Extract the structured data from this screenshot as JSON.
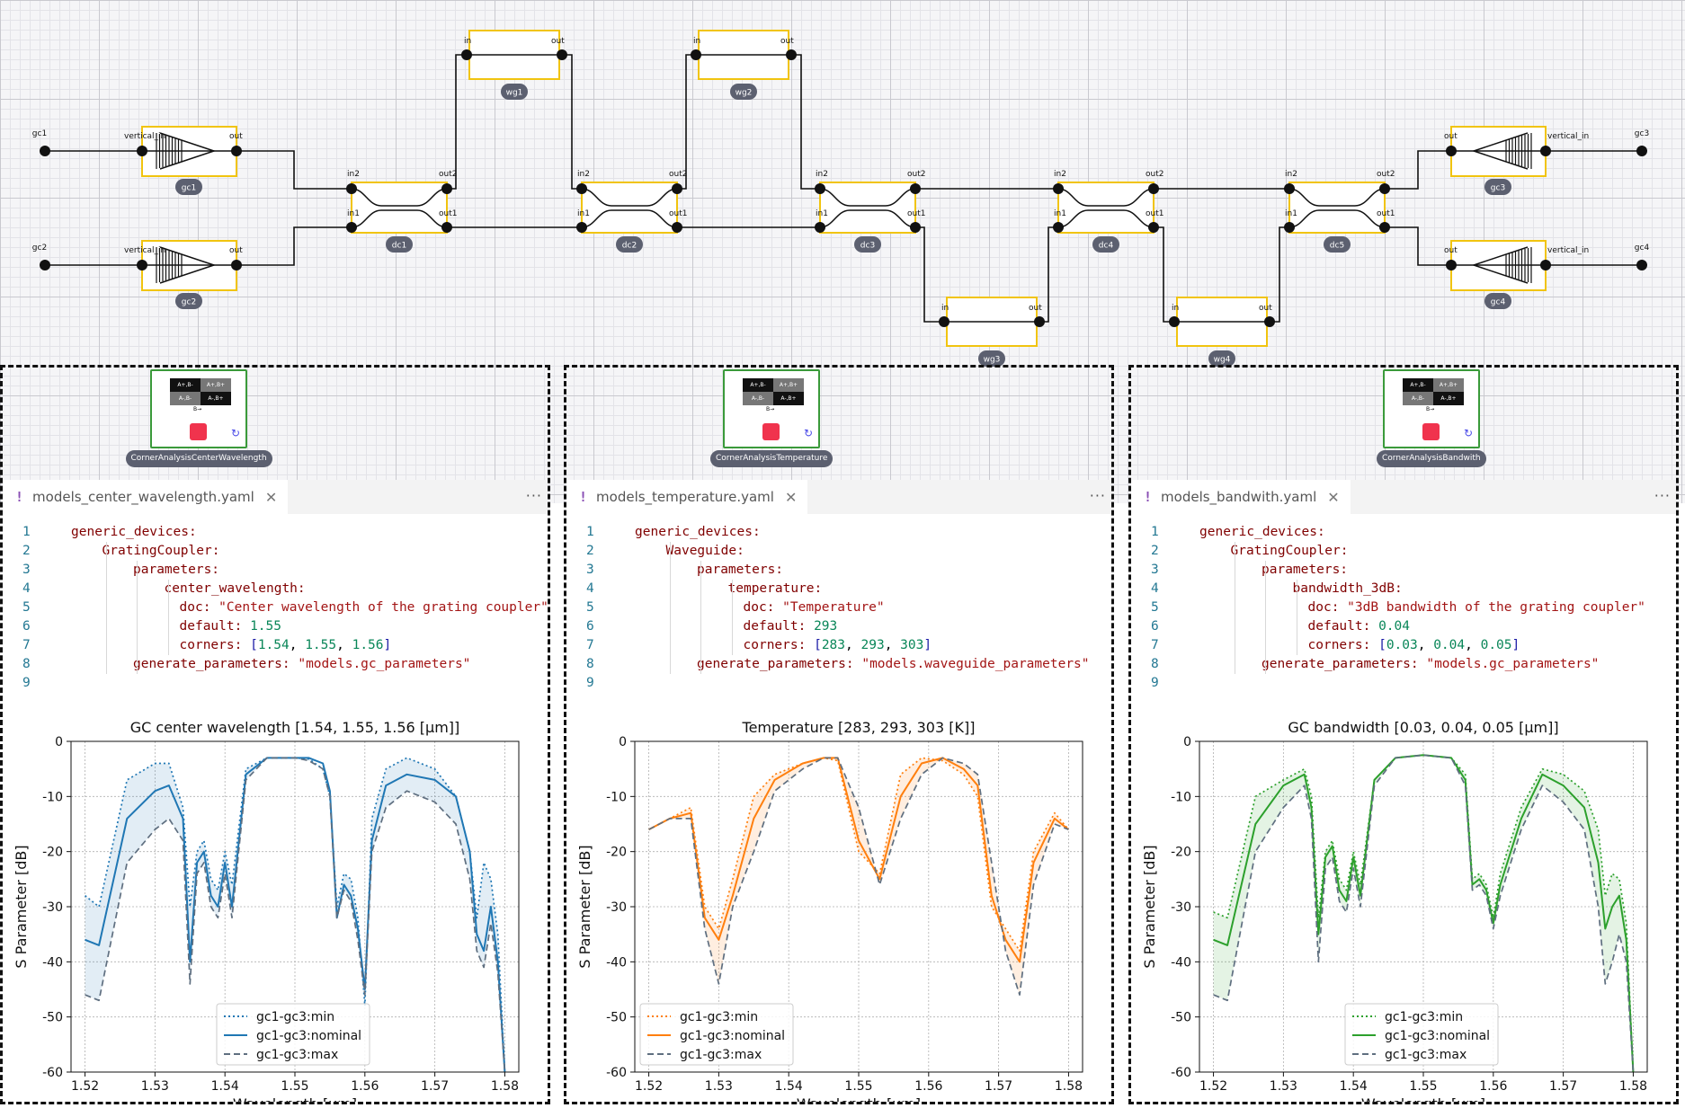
{
  "schematic": {
    "ports": [
      {
        "id": "p_gc1",
        "label": "gc1"
      },
      {
        "id": "p_gc2",
        "label": "gc2"
      },
      {
        "id": "p_gc3",
        "label": "gc3"
      },
      {
        "id": "p_gc4",
        "label": "gc4"
      }
    ],
    "grating_couplers": [
      {
        "id": "gc1",
        "name": "gc1",
        "in_label": "vertical_in",
        "out_label": "out",
        "facing": "right"
      },
      {
        "id": "gc2",
        "name": "gc2",
        "in_label": "vertical_in",
        "out_label": "out",
        "facing": "right"
      },
      {
        "id": "gc3",
        "name": "gc3",
        "in_label": "vertical_in",
        "out_label": "out",
        "facing": "left"
      },
      {
        "id": "gc4",
        "name": "gc4",
        "in_label": "vertical_in",
        "out_label": "out",
        "facing": "left"
      }
    ],
    "directional_couplers": [
      {
        "id": "dc1",
        "name": "dc1",
        "in2": "in2",
        "out2": "out2",
        "in1": "in1",
        "out1": "out1"
      },
      {
        "id": "dc2",
        "name": "dc2",
        "in2": "in2",
        "out2": "out2",
        "in1": "in1",
        "out1": "out1"
      },
      {
        "id": "dc3",
        "name": "dc3",
        "in2": "in2",
        "out2": "out2",
        "in1": "in1",
        "out1": "out1"
      },
      {
        "id": "dc4",
        "name": "dc4",
        "in2": "in2",
        "out2": "out2",
        "in1": "in1",
        "out1": "out1"
      },
      {
        "id": "dc5",
        "name": "dc5",
        "in2": "in2",
        "out2": "out2",
        "in1": "in1",
        "out1": "out1"
      }
    ],
    "waveguides": [
      {
        "id": "wg1",
        "name": "wg1",
        "in": "in",
        "out": "out"
      },
      {
        "id": "wg2",
        "name": "wg2",
        "in": "in",
        "out": "out"
      },
      {
        "id": "wg3",
        "name": "wg3",
        "in": "in",
        "out": "out"
      },
      {
        "id": "wg4",
        "name": "wg4",
        "in": "in",
        "out": "out"
      }
    ],
    "corner_blocks": [
      {
        "name": "CornerAnalysisCenterWavelength",
        "cells": [
          "A+,B-",
          "A+,B+",
          "A-,B-",
          "A-,B+"
        ],
        "axis_label": "B→",
        "colors": {
          "stop": "#f0334d",
          "refresh": "#4a4ae8",
          "border": "#3a9a3a"
        }
      },
      {
        "name": "CornerAnalysisTemperature",
        "cells": [
          "A+,B-",
          "A+,B+",
          "A-,B-",
          "A-,B+"
        ],
        "axis_label": "B→",
        "colors": {
          "stop": "#f0334d",
          "refresh": "#4a4ae8",
          "border": "#3a9a3a"
        }
      },
      {
        "name": "CornerAnalysisBandwith",
        "cells": [
          "A+,B-",
          "A+,B+",
          "A-,B-",
          "A-,B+"
        ],
        "axis_label": "B→",
        "colors": {
          "stop": "#f0334d",
          "refresh": "#4a4ae8",
          "border": "#3a9a3a"
        }
      }
    ],
    "colors": {
      "component_border": "#f1c40f",
      "wire": "#111111",
      "pill": "#5c6070"
    }
  },
  "panels": [
    {
      "tab": {
        "filename": "models_center_wavelength.yaml",
        "more": "···"
      },
      "code": {
        "line_numbers": [
          "1",
          "2",
          "3",
          "4",
          "5",
          "6",
          "7",
          "8",
          "9"
        ],
        "l1": "generic_devices:",
        "l2": "GratingCoupler:",
        "l3": "parameters:",
        "l4": "center_wavelength:",
        "l5k": "doc:",
        "l5v": "\"Center wavelength of the grating coupler\"",
        "l6k": "default:",
        "l6v": "1.55",
        "l7k": "corners:",
        "l7a": "1.54",
        "l7b": "1.55",
        "l7c": "1.56",
        "l8k": "generate_parameters:",
        "l8v": "\"models.gc_parameters\""
      }
    },
    {
      "tab": {
        "filename": "models_temperature.yaml",
        "more": "···"
      },
      "code": {
        "line_numbers": [
          "1",
          "2",
          "3",
          "4",
          "5",
          "6",
          "7",
          "8",
          "9"
        ],
        "l1": "generic_devices:",
        "l2": "Waveguide:",
        "l3": "parameters:",
        "l4": "temperature:",
        "l5k": "doc:",
        "l5v": "\"Temperature\"",
        "l6k": "default:",
        "l6v": "293",
        "l7k": "corners:",
        "l7a": "283",
        "l7b": "293",
        "l7c": "303",
        "l8k": "generate_parameters:",
        "l8v": "\"models.waveguide_parameters\""
      }
    },
    {
      "tab": {
        "filename": "models_bandwith.yaml",
        "more": "···"
      },
      "code": {
        "line_numbers": [
          "1",
          "2",
          "3",
          "4",
          "5",
          "6",
          "7",
          "8",
          "9"
        ],
        "l1": "generic_devices:",
        "l2": "GratingCoupler:",
        "l3": "parameters:",
        "l4": "bandwidth_3dB:",
        "l5k": "doc:",
        "l5v": "\"3dB bandwidth of the grating coupler\"",
        "l6k": "default:",
        "l6v": "0.04",
        "l7k": "corners:",
        "l7a": "0.03",
        "l7b": "0.04",
        "l7c": "0.05",
        "l8k": "generate_parameters:",
        "l8v": "\"models.gc_parameters\""
      }
    }
  ],
  "chart_data": [
    {
      "type": "line",
      "title": "GC center wavelength [1.54, 1.55, 1.56 [μm]]",
      "xlabel": "Wavelength [μm]",
      "ylabel": "S Parameter [dB]",
      "xlim": [
        1.518,
        1.582
      ],
      "ylim": [
        -60,
        0
      ],
      "xticks": [
        1.52,
        1.53,
        1.54,
        1.55,
        1.56,
        1.57,
        1.58
      ],
      "yticks": [
        0,
        -10,
        -20,
        -30,
        -40,
        -50,
        -60
      ],
      "grid": true,
      "legend_loc": "lower center",
      "color": "#1f77b4",
      "fill_between_min_max": true,
      "x": [
        1.52,
        1.522,
        1.526,
        1.53,
        1.532,
        1.534,
        1.535,
        1.536,
        1.537,
        1.538,
        1.539,
        1.54,
        1.541,
        1.543,
        1.546,
        1.55,
        1.552,
        1.554,
        1.555,
        1.556,
        1.557,
        1.558,
        1.559,
        1.56,
        1.561,
        1.563,
        1.566,
        1.57,
        1.573,
        1.575,
        1.576,
        1.577,
        1.578,
        1.579,
        1.58
      ],
      "series": [
        {
          "name": "gc1-gc3:min",
          "style": "dotted",
          "values": [
            -28,
            -30,
            -7,
            -4,
            -4,
            -12,
            -30,
            -20,
            -18,
            -25,
            -27,
            -20,
            -26,
            -5,
            -3,
            -3,
            -3.2,
            -5,
            -10,
            -30,
            -24,
            -25,
            -32,
            -48,
            -14,
            -5,
            -3,
            -5,
            -10,
            -20,
            -32,
            -22,
            -25,
            -35,
            -60
          ]
        },
        {
          "name": "gc1-gc3:nominal",
          "style": "solid",
          "values": [
            -36,
            -37,
            -14,
            -9,
            -8,
            -14,
            -40,
            -22,
            -20,
            -28,
            -30,
            -22,
            -30,
            -6,
            -3,
            -3,
            -3,
            -4,
            -9,
            -32,
            -26,
            -28,
            -34,
            -45,
            -18,
            -8,
            -6,
            -7,
            -10,
            -20,
            -35,
            -38,
            -30,
            -40,
            -60
          ]
        },
        {
          "name": "gc1-gc3:max",
          "style": "dashed",
          "values": [
            -46,
            -47,
            -22,
            -16,
            -14,
            -18,
            -44,
            -24,
            -22,
            -30,
            -32,
            -24,
            -32,
            -7,
            -3,
            -3,
            -3.5,
            -5,
            -10,
            -32,
            -27,
            -29,
            -36,
            -46,
            -20,
            -12,
            -9,
            -11,
            -15,
            -25,
            -38,
            -41,
            -33,
            -42,
            -60
          ]
        }
      ]
    },
    {
      "type": "line",
      "title": "Temperature [283, 293, 303 [K]]",
      "xlabel": "Wavelength [μm]",
      "ylabel": "S Parameter [dB]",
      "xlim": [
        1.518,
        1.582
      ],
      "ylim": [
        -60,
        0
      ],
      "xticks": [
        1.52,
        1.53,
        1.54,
        1.55,
        1.56,
        1.57,
        1.58
      ],
      "yticks": [
        0,
        -10,
        -20,
        -30,
        -40,
        -50,
        -60
      ],
      "grid": true,
      "legend_loc": "lower left",
      "color": "#ff7f0e",
      "fill_between_min_max": true,
      "x": [
        1.52,
        1.523,
        1.526,
        1.528,
        1.53,
        1.532,
        1.535,
        1.538,
        1.542,
        1.545,
        1.547,
        1.55,
        1.553,
        1.556,
        1.559,
        1.562,
        1.565,
        1.567,
        1.569,
        1.571,
        1.573,
        1.575,
        1.578,
        1.58
      ],
      "series": [
        {
          "name": "gc1-gc3:min",
          "style": "dotted",
          "values": [
            -16,
            -14,
            -12,
            -30,
            -34,
            -25,
            -10,
            -6,
            -4,
            -3,
            -3.5,
            -20,
            -24,
            -6,
            -3,
            -3.5,
            -6,
            -10,
            -30,
            -34,
            -38,
            -20,
            -13,
            -16
          ]
        },
        {
          "name": "gc1-gc3:nominal",
          "style": "solid",
          "values": [
            -16,
            -14,
            -13,
            -32,
            -36,
            -28,
            -14,
            -7,
            -4,
            -3,
            -3,
            -18,
            -25,
            -10,
            -4,
            -3,
            -5,
            -8,
            -28,
            -36,
            -40,
            -22,
            -14,
            -16
          ]
        },
        {
          "name": "gc1-gc3:max",
          "style": "dashed",
          "values": [
            -16,
            -14,
            -14,
            -34,
            -44,
            -30,
            -20,
            -9,
            -5,
            -3,
            -3,
            -12,
            -26,
            -14,
            -6,
            -3,
            -4,
            -6,
            -22,
            -38,
            -46,
            -26,
            -15,
            -16
          ]
        }
      ]
    },
    {
      "type": "line",
      "title": "GC bandwidth [0.03, 0.04, 0.05 [μm]]",
      "xlabel": "Wavelength [μm]",
      "ylabel": "S Parameter [dB]",
      "xlim": [
        1.518,
        1.582
      ],
      "ylim": [
        -60,
        0
      ],
      "xticks": [
        1.52,
        1.53,
        1.54,
        1.55,
        1.56,
        1.57,
        1.58
      ],
      "yticks": [
        0,
        -10,
        -20,
        -30,
        -40,
        -50,
        -60
      ],
      "grid": true,
      "legend_loc": "lower center",
      "color": "#2ca02c",
      "fill_between_min_max": true,
      "x": [
        1.52,
        1.522,
        1.526,
        1.53,
        1.533,
        1.534,
        1.535,
        1.536,
        1.537,
        1.538,
        1.539,
        1.54,
        1.541,
        1.543,
        1.546,
        1.55,
        1.554,
        1.556,
        1.557,
        1.558,
        1.559,
        1.56,
        1.561,
        1.564,
        1.567,
        1.57,
        1.573,
        1.575,
        1.576,
        1.577,
        1.578,
        1.579,
        1.58
      ],
      "series": [
        {
          "name": "gc1-gc3:min",
          "style": "dotted",
          "values": [
            -31,
            -32,
            -10,
            -7,
            -5,
            -10,
            -32,
            -20,
            -18,
            -25,
            -27,
            -20,
            -26,
            -7,
            -3,
            -2.5,
            -3,
            -6,
            -25,
            -24,
            -26,
            -32,
            -24,
            -12,
            -5,
            -6,
            -9,
            -16,
            -28,
            -24,
            -25,
            -33,
            -60
          ]
        },
        {
          "name": "gc1-gc3:nominal",
          "style": "solid",
          "values": [
            -36,
            -37,
            -15,
            -8,
            -6,
            -12,
            -35,
            -21,
            -19,
            -27,
            -29,
            -21,
            -28,
            -7,
            -3,
            -2.5,
            -3,
            -7,
            -26,
            -25,
            -27,
            -33,
            -26,
            -14,
            -6,
            -8,
            -12,
            -22,
            -34,
            -30,
            -28,
            -36,
            -60
          ]
        },
        {
          "name": "gc1-gc3:max",
          "style": "dashed",
          "values": [
            -46,
            -47,
            -20,
            -12,
            -8,
            -14,
            -40,
            -23,
            -21,
            -29,
            -31,
            -23,
            -30,
            -8,
            -3,
            -2.5,
            -3,
            -8,
            -27,
            -26,
            -28,
            -34,
            -28,
            -16,
            -8,
            -11,
            -16,
            -30,
            -44,
            -40,
            -35,
            -40,
            -60
          ]
        }
      ]
    }
  ]
}
